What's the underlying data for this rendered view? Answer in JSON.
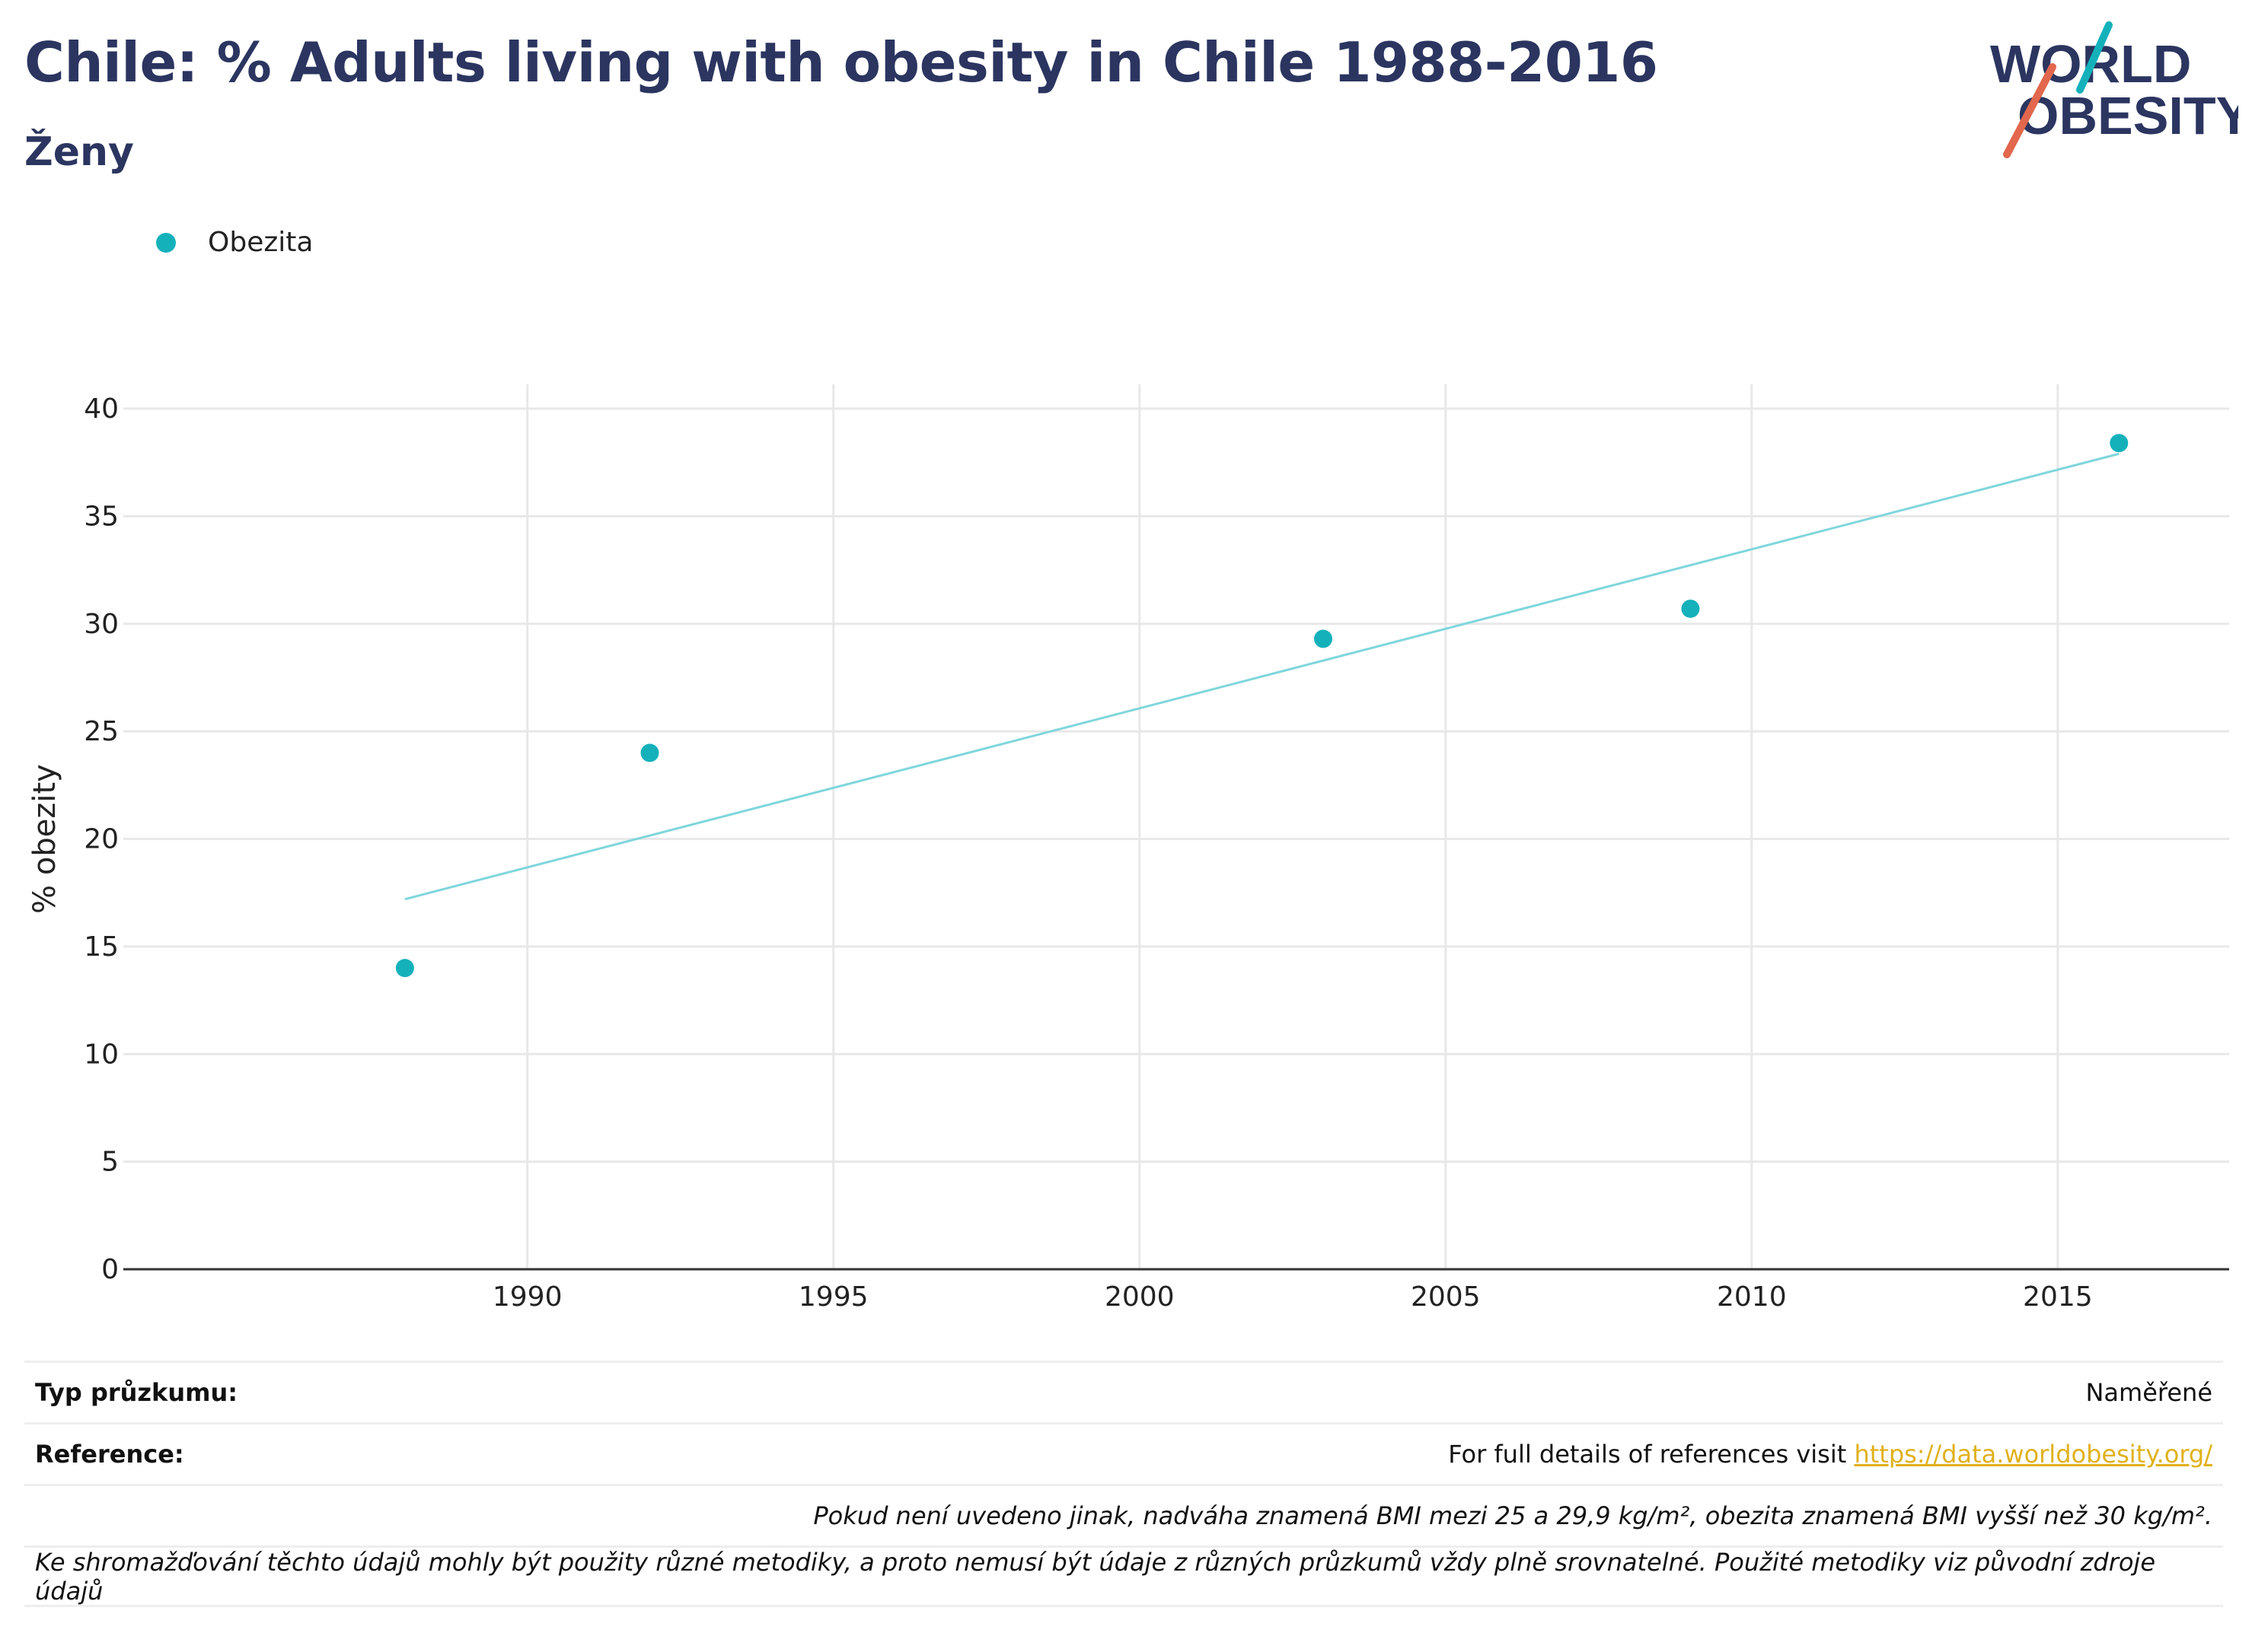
{
  "header": {
    "title": "Chile: % Adults living with obesity in Chile 1988-2016",
    "subtitle": "Ženy"
  },
  "logo": {
    "line1": "WORLD",
    "line2": "OBESITY",
    "colors": {
      "text": "#2b3560",
      "teal_slash": "#14b1bb",
      "red_slash": "#e2674d"
    }
  },
  "legend": {
    "items": [
      {
        "label": "Obezita",
        "color": "#14b1bb"
      }
    ]
  },
  "chart_data": {
    "type": "scatter",
    "ylabel": "% obezity",
    "xlabel": "",
    "x_ticks": [
      1990,
      1995,
      2000,
      2005,
      2010,
      2015
    ],
    "y_ticks": [
      0,
      5,
      10,
      15,
      20,
      25,
      30,
      35,
      40
    ],
    "xlim": [
      1983.4,
      2017.8
    ],
    "ylim": [
      0,
      40
    ],
    "grid": true,
    "legend_position": "top-left",
    "series": [
      {
        "name": "Obezita",
        "color": "#14b1bb",
        "points": [
          {
            "x": 1988,
            "y": 14.0
          },
          {
            "x": 1992,
            "y": 24.0
          },
          {
            "x": 2003,
            "y": 29.3
          },
          {
            "x": 2009,
            "y": 30.7
          },
          {
            "x": 2016,
            "y": 38.4
          }
        ]
      }
    ],
    "trendline": {
      "color": "#7fd6dc",
      "x": [
        1988,
        2016
      ],
      "y": [
        17.2,
        37.9
      ]
    }
  },
  "info": {
    "survey_type_label": "Typ průzkumu:",
    "survey_type_value": "Naměřené",
    "reference_label": "Reference:",
    "reference_text": "For full details of references visit ",
    "reference_link": "https://data.worldobesity.org/",
    "note1": "Pokud není uvedeno jinak, nadváha znamená BMI mezi 25 a 29,9 kg/m², obezita znamená BMI vyšší než 30 kg/m².",
    "note2": "Ke shromažďování těchto údajů mohly být použity různé metodiky, a proto nemusí být údaje z různých průzkumů vždy plně srovnatelné. Použité metodiky viz původní zdroje údajů"
  }
}
